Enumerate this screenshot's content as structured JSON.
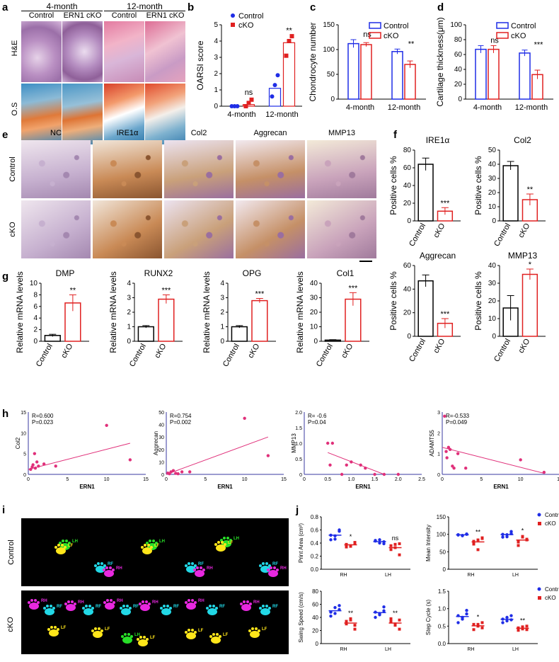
{
  "panels": {
    "a": {
      "letter": "a",
      "group1": "4-month",
      "group2": "12-month",
      "sub": [
        "Control",
        "ERN1 cKO",
        "Control",
        "ERN1 cKO"
      ],
      "rows": [
        "H&E",
        "O.S"
      ]
    },
    "b": {
      "letter": "b",
      "ylabel": "OARSI score",
      "legend": [
        "Control",
        "cKO"
      ],
      "groups": [
        "4-month",
        "12-month"
      ],
      "ticks": [
        "0",
        "1",
        "2",
        "3",
        "4",
        "5"
      ],
      "ylim": [
        0,
        5
      ],
      "points": {
        "control": [
          [
            0,
            0,
            0
          ],
          [
            0.6,
            1.3,
            1.9
          ]
        ],
        "cko": [
          [
            0,
            0.2,
            0.4
          ],
          [
            3.1,
            4.0,
            4.3
          ]
        ]
      },
      "means": {
        "control": [
          0,
          1.1
        ],
        "cko": [
          0.1,
          3.9
        ]
      },
      "sig": [
        "ns",
        "**"
      ]
    },
    "c": {
      "letter": "c",
      "ylabel": "Chondrocyte number",
      "legend": [
        "Control",
        "cKO"
      ],
      "groups": [
        "4-month",
        "12-month"
      ],
      "ticks": [
        "0",
        "50",
        "100",
        "150"
      ],
      "ylim": [
        0,
        150
      ],
      "control": [
        112,
        96
      ],
      "cko": [
        110,
        70
      ],
      "err_control": [
        8,
        5
      ],
      "err_cko": [
        4,
        7
      ],
      "sig": [
        "ns",
        "**"
      ]
    },
    "d": {
      "letter": "d",
      "ylabel": "Cartilage thickness(μm)",
      "legend": [
        "Control",
        "cKO"
      ],
      "groups": [
        "4-month",
        "12-month"
      ],
      "ticks": [
        "0",
        "20",
        "40",
        "60",
        "80",
        "100"
      ],
      "ylim": [
        0,
        100
      ],
      "control": [
        67,
        62
      ],
      "cko": [
        67,
        33
      ],
      "err_control": [
        5,
        4
      ],
      "err_cko": [
        5,
        6
      ],
      "sig": [
        "ns",
        "***"
      ]
    },
    "e": {
      "letter": "e",
      "cols": [
        "NC",
        "IRE1α",
        "Col2",
        "Aggrecan",
        "MMP13"
      ],
      "rows": [
        "Control",
        "cKO"
      ]
    },
    "f": {
      "letter": "f",
      "ylabel": "Positive cells %",
      "cats": [
        "Control",
        "cKO"
      ],
      "charts": [
        {
          "title": "IRE1α",
          "ticks": [
            "0",
            "20",
            "40",
            "60",
            "80"
          ],
          "ymax": 80,
          "values": [
            64,
            11
          ],
          "err": [
            7,
            4
          ],
          "sig": "***"
        },
        {
          "title": "Col2",
          "ticks": [
            "0",
            "10",
            "20",
            "30",
            "40",
            "50"
          ],
          "ymax": 50,
          "values": [
            39,
            15
          ],
          "err": [
            3,
            4
          ],
          "sig": "**"
        },
        {
          "title": "Aggrecan",
          "ticks": [
            "0",
            "20",
            "40",
            "60"
          ],
          "ymax": 60,
          "values": [
            47,
            11
          ],
          "err": [
            5,
            4
          ],
          "sig": "***"
        },
        {
          "title": "MMP13",
          "ticks": [
            "0",
            "10",
            "20",
            "30",
            "40"
          ],
          "ymax": 40,
          "values": [
            16,
            35
          ],
          "err": [
            7,
            3
          ],
          "sig": "*"
        }
      ]
    },
    "g": {
      "letter": "g",
      "ylabel": "Relative mRNA levels",
      "cats": [
        "Control",
        "cKO"
      ],
      "charts": [
        {
          "title": "DMP",
          "ticks": [
            "0",
            "2",
            "4",
            "6",
            "8",
            "10"
          ],
          "ymax": 10,
          "values": [
            1,
            6.6
          ],
          "err": [
            0.2,
            1.4
          ],
          "sig": "**"
        },
        {
          "title": "RUNX2",
          "ticks": [
            "0",
            "1",
            "2",
            "3",
            "4"
          ],
          "ymax": 4,
          "values": [
            1,
            2.9
          ],
          "err": [
            0.08,
            0.3
          ],
          "sig": "***"
        },
        {
          "title": "OPG",
          "ticks": [
            "0",
            "1",
            "2",
            "3",
            "4"
          ],
          "ymax": 4,
          "values": [
            1,
            2.8
          ],
          "err": [
            0.08,
            0.15
          ],
          "sig": "***"
        },
        {
          "title": "Col1",
          "ticks": [
            "0",
            "10",
            "20",
            "30",
            "40"
          ],
          "ymax": 40,
          "values": [
            0.8,
            29
          ],
          "err": [
            0.3,
            4.5
          ],
          "sig": "***"
        }
      ]
    },
    "h": {
      "letter": "h",
      "xlabel": "ERN1",
      "charts": [
        {
          "ylabel": "Col2",
          "stat1": "R=0.600",
          "stat2": "P=0.023",
          "xticks": [
            "0",
            "5",
            "10",
            "15"
          ],
          "xmax": 15,
          "yticks": [
            "0",
            "5",
            "10",
            "15"
          ],
          "ymax": 15,
          "pts": [
            [
              0.3,
              1.2
            ],
            [
              0.5,
              1.8
            ],
            [
              0.6,
              2.3
            ],
            [
              0.8,
              5
            ],
            [
              0.9,
              1.5
            ],
            [
              1.1,
              3
            ],
            [
              1.3,
              2
            ],
            [
              2,
              2.5
            ],
            [
              3.5,
              2
            ],
            [
              10,
              11.8
            ],
            [
              13,
              3.5
            ]
          ],
          "line": [
            [
              0,
              1.2
            ],
            [
              13,
              7.5
            ]
          ]
        },
        {
          "ylabel": "Aggrecan",
          "stat1": "R=0.754",
          "stat2": "P=0.002",
          "xticks": [
            "0",
            "5",
            "10",
            "15"
          ],
          "xmax": 15,
          "yticks": [
            "0",
            "10",
            "20",
            "30",
            "40",
            "50"
          ],
          "ymax": 50,
          "pts": [
            [
              0.2,
              1
            ],
            [
              0.4,
              0.5
            ],
            [
              0.6,
              2
            ],
            [
              0.9,
              3
            ],
            [
              1.2,
              0.8
            ],
            [
              1.5,
              0.5
            ],
            [
              2,
              2
            ],
            [
              3,
              2
            ],
            [
              10,
              45
            ],
            [
              13,
              15
            ]
          ],
          "line": [
            [
              0,
              0
            ],
            [
              13,
              30
            ]
          ]
        },
        {
          "ylabel": "MMP13",
          "stat1": "R= -0.6",
          "stat2": "P=0.04",
          "xticks": [
            "0",
            "0.5",
            "1.0",
            "1.5",
            "2.0",
            "2.5"
          ],
          "xmax": 2.5,
          "yticks": [
            "0",
            "0.5",
            "1.0",
            "1.5",
            "2.0"
          ],
          "ymax": 2,
          "pts": [
            [
              0.5,
              1
            ],
            [
              0.6,
              1
            ],
            [
              0.55,
              0.3
            ],
            [
              0.8,
              0
            ],
            [
              0.9,
              0.3
            ],
            [
              1,
              0.4
            ],
            [
              1.2,
              0.3
            ],
            [
              1.3,
              0.2
            ],
            [
              1.5,
              0
            ],
            [
              1.7,
              0
            ],
            [
              2,
              0
            ]
          ],
          "line": [
            [
              0.5,
              0.7
            ],
            [
              1.7,
              0
            ]
          ]
        },
        {
          "ylabel": "ADAMTS5",
          "stat1": "R=-0.533",
          "stat2": "P=0.049",
          "xticks": [
            "0",
            "5",
            "10",
            "15"
          ],
          "xmax": 15,
          "yticks": [
            "0",
            "1",
            "2",
            "3"
          ],
          "ymax": 3,
          "pts": [
            [
              0.3,
              2.8
            ],
            [
              0.5,
              1.1
            ],
            [
              0.6,
              0.8
            ],
            [
              0.8,
              1.3
            ],
            [
              1,
              1.2
            ],
            [
              1.3,
              0.4
            ],
            [
              1.5,
              0.3
            ],
            [
              2,
              1
            ],
            [
              3,
              0.3
            ],
            [
              10,
              0.7
            ],
            [
              13,
              0.1
            ]
          ],
          "line": [
            [
              0,
              1.3
            ],
            [
              13,
              0.05
            ]
          ]
        }
      ]
    },
    "i": {
      "letter": "i",
      "rows": [
        "Control",
        "cKO"
      ],
      "paws": [
        "LF",
        "LH",
        "RF",
        "RH"
      ]
    },
    "j": {
      "letter": "j",
      "legend": [
        "Control",
        "cKO"
      ],
      "cats": [
        "RH",
        "LH"
      ],
      "charts": [
        {
          "ylabel": "Print Area (cm²)",
          "ticks": [
            "0.0",
            "0.2",
            "0.4",
            "0.6",
            "0.8"
          ],
          "ymax": 0.8,
          "ctrl": [
            [
              0.52,
              0.46,
              0.58,
              0.45,
              0.51,
              0.6
            ],
            [
              0.44,
              0.4,
              0.42,
              0.43,
              0.45,
              0.39
            ]
          ],
          "cko": [
            [
              0.38,
              0.35,
              0.4,
              0.34,
              0.36,
              0.41
            ],
            [
              0.3,
              0.38,
              0.22,
              0.36,
              0.33,
              0.39
            ]
          ],
          "sig": [
            "*",
            "ns"
          ]
        },
        {
          "ylabel": "Mean Intensity",
          "ticks": [
            "0",
            "50",
            "100",
            "150"
          ],
          "ymax": 150,
          "ctrl": [
            [
              98,
              96,
              101,
              99,
              97,
              100
            ],
            [
              100,
              93,
              108,
              92,
              99,
              102
            ]
          ],
          "cko": [
            [
              80,
              84,
              88,
              72,
              56,
              90
            ],
            [
              78,
              92,
              86,
              68,
              94,
              84
            ]
          ],
          "sig": [
            "**",
            "*"
          ]
        },
        {
          "ylabel": "Swing Speed (cm/s)",
          "ticks": [
            "0",
            "20",
            "40",
            "60",
            "80"
          ],
          "ymax": 80,
          "ctrl": [
            [
              48,
              55,
              58,
              42,
              46,
              52
            ],
            [
              48,
              46,
              50,
              40,
              44,
              56
            ]
          ],
          "cko": [
            [
              30,
              36,
              22,
              34,
              38,
              28
            ],
            [
              34,
              30,
              22,
              38,
              28,
              36
            ]
          ],
          "sig": [
            "**",
            "**"
          ]
        },
        {
          "ylabel": "Step Cycle (s)",
          "ticks": [
            "0.0",
            "0.5",
            "1.0",
            "1.5"
          ],
          "ymax": 1.5,
          "ctrl": [
            [
              0.8,
              0.75,
              0.95,
              0.6,
              0.7,
              0.85
            ],
            [
              0.7,
              0.65,
              0.8,
              0.6,
              0.75,
              0.68
            ]
          ],
          "cko": [
            [
              0.55,
              0.5,
              0.6,
              0.4,
              0.55,
              0.45
            ],
            [
              0.45,
              0.42,
              0.5,
              0.38,
              0.48,
              0.4
            ]
          ],
          "sig": [
            "*",
            "**"
          ]
        }
      ]
    }
  },
  "colors": {
    "blue": "#1f2de6",
    "red": "#e02020",
    "pink": "#e0307a",
    "scatter_axis": "#3a3aa0"
  }
}
